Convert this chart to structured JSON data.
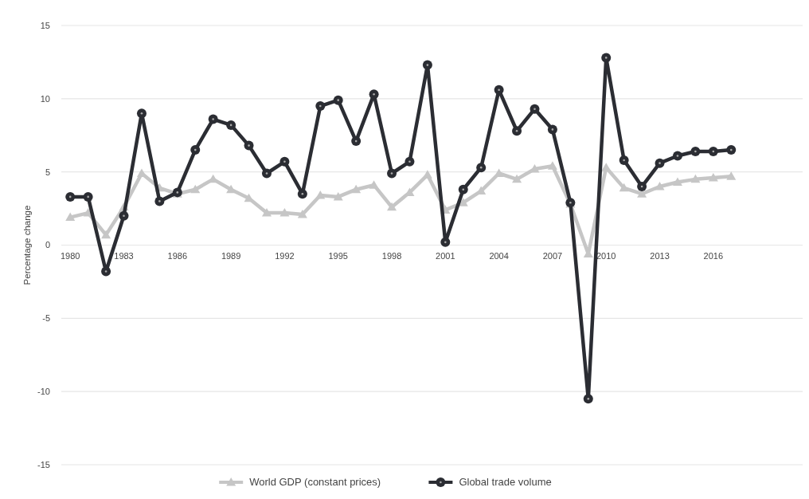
{
  "chart_data": {
    "type": "line",
    "ylabel": "Percentage change",
    "x": [
      1980,
      1981,
      1982,
      1983,
      1984,
      1985,
      1986,
      1987,
      1988,
      1989,
      1990,
      1991,
      1992,
      1993,
      1994,
      1995,
      1996,
      1997,
      1998,
      1999,
      2000,
      2001,
      2002,
      2003,
      2004,
      2005,
      2006,
      2007,
      2008,
      2009,
      2010,
      2011,
      2012,
      2013,
      2014,
      2015,
      2016,
      2017
    ],
    "series": [
      {
        "name": "World GDP (constant prices)",
        "color": "#c6c6c6",
        "marker": "triangle",
        "values": [
          1.9,
          2.2,
          0.7,
          2.6,
          4.9,
          3.9,
          3.5,
          3.8,
          4.5,
          3.8,
          3.2,
          2.2,
          2.2,
          2.1,
          3.4,
          3.3,
          3.8,
          4.1,
          2.6,
          3.6,
          4.8,
          2.4,
          2.9,
          3.7,
          4.9,
          4.5,
          5.2,
          5.4,
          2.8,
          -0.6,
          5.3,
          3.9,
          3.5,
          4.0,
          4.3,
          4.5,
          4.6,
          4.7
        ]
      },
      {
        "name": "Global trade volume",
        "color": "#2b2d33",
        "marker": "circle",
        "values": [
          3.3,
          3.3,
          -1.8,
          2.0,
          9.0,
          3.0,
          3.6,
          6.5,
          8.6,
          8.2,
          6.8,
          4.9,
          5.7,
          3.5,
          9.5,
          9.9,
          7.1,
          10.3,
          4.9,
          5.7,
          12.3,
          0.2,
          3.8,
          5.3,
          10.6,
          7.8,
          9.3,
          7.9,
          2.9,
          -10.5,
          12.8,
          5.8,
          4.0,
          5.6,
          6.1,
          6.4,
          6.4,
          6.5
        ]
      }
    ],
    "xlim": [
      1979.5,
      2021
    ],
    "xticks": [
      1980,
      1983,
      1986,
      1989,
      1992,
      1995,
      1998,
      2001,
      2004,
      2007,
      2010,
      2013,
      2016
    ],
    "ylim": [
      -15,
      15
    ],
    "yticks": [
      -15,
      -10,
      -5,
      0,
      5,
      10,
      15
    ],
    "grid": "y",
    "legend": "bottom",
    "line_style": "solid"
  }
}
